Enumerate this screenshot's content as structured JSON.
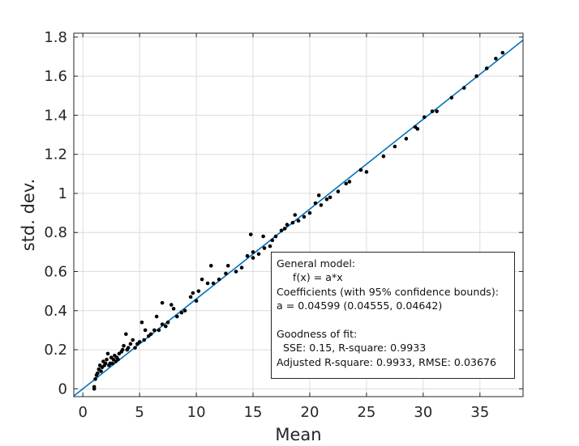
{
  "chart_data": {
    "type": "scatter",
    "xlabel": "Mean",
    "ylabel": "std. dev.",
    "xlim": [
      -0.8,
      38.8
    ],
    "ylim": [
      -0.04,
      1.82
    ],
    "xticks": [
      "0",
      "5",
      "10",
      "15",
      "20",
      "25",
      "30",
      "35"
    ],
    "yticks": [
      "0",
      "0.2",
      "0.4",
      "0.6",
      "0.8",
      "1",
      "1.2",
      "1.4",
      "1.6",
      "1.8"
    ],
    "grid": true,
    "colors": {
      "points": "#000000",
      "fit_line": "#0072bd",
      "grid": "#dcdcdc",
      "axes": "#262626"
    },
    "points": {
      "x": [
        1.0,
        1.0,
        1.1,
        1.2,
        1.3,
        1.4,
        1.5,
        1.6,
        1.7,
        1.8,
        1.9,
        2.0,
        2.1,
        2.2,
        2.3,
        2.4,
        2.5,
        2.6,
        2.7,
        2.8,
        2.9,
        3.0,
        3.1,
        3.2,
        3.4,
        3.5,
        3.6,
        3.8,
        3.9,
        4.0,
        4.2,
        4.4,
        4.6,
        4.8,
        5.0,
        5.2,
        5.4,
        5.5,
        5.8,
        6.0,
        6.3,
        6.5,
        6.7,
        7.0,
        7.0,
        7.3,
        7.5,
        7.8,
        8.0,
        8.3,
        8.7,
        9.0,
        9.5,
        9.7,
        10.0,
        10.2,
        10.5,
        11.0,
        11.3,
        11.5,
        12.0,
        12.6,
        12.8,
        13.5,
        14.0,
        14.5,
        14.8,
        15.0,
        15.0,
        15.5,
        15.9,
        16.0,
        16.5,
        16.7,
        17.0,
        17.5,
        17.8,
        18.0,
        18.5,
        18.7,
        19.0,
        19.5,
        20.0,
        20.5,
        20.8,
        21.0,
        21.5,
        21.8,
        22.5,
        23.2,
        23.5,
        24.5,
        25.0,
        26.5,
        27.5,
        28.5,
        29.3,
        29.5,
        30.1,
        30.8,
        31.2,
        32.5,
        33.6,
        34.7,
        35.6,
        36.4,
        37.0
      ],
      "y": [
        0.0,
        0.01,
        0.05,
        0.07,
        0.08,
        0.1,
        0.12,
        0.09,
        0.11,
        0.14,
        0.12,
        0.13,
        0.15,
        0.18,
        0.12,
        0.13,
        0.16,
        0.13,
        0.15,
        0.17,
        0.14,
        0.16,
        0.15,
        0.18,
        0.19,
        0.2,
        0.22,
        0.28,
        0.2,
        0.21,
        0.23,
        0.25,
        0.21,
        0.23,
        0.24,
        0.34,
        0.25,
        0.3,
        0.27,
        0.28,
        0.3,
        0.37,
        0.3,
        0.33,
        0.44,
        0.32,
        0.34,
        0.43,
        0.41,
        0.37,
        0.39,
        0.4,
        0.47,
        0.49,
        0.45,
        0.5,
        0.56,
        0.54,
        0.63,
        0.54,
        0.56,
        0.59,
        0.63,
        0.6,
        0.62,
        0.68,
        0.79,
        0.67,
        0.7,
        0.69,
        0.78,
        0.72,
        0.73,
        0.76,
        0.78,
        0.81,
        0.82,
        0.84,
        0.85,
        0.89,
        0.86,
        0.88,
        0.9,
        0.95,
        0.99,
        0.94,
        0.97,
        0.98,
        1.01,
        1.05,
        1.06,
        1.12,
        1.11,
        1.19,
        1.24,
        1.28,
        1.34,
        1.33,
        1.39,
        1.42,
        1.42,
        1.49,
        1.54,
        1.6,
        1.64,
        1.69,
        1.72
      ]
    },
    "fit": {
      "a": 0.04599
    }
  },
  "fit_box": {
    "line1": "General model:",
    "line2": "     f(x) = a*x",
    "line3": "Coefficients (with 95% confidence bounds):",
    "line4": "a = 0.04599 (0.04555, 0.04642)",
    "line5": "Goodness of fit:",
    "line6": "  SSE: 0.15, R-square: 0.9933",
    "line7": "Adjusted R-square: 0.9933, RMSE: 0.03676"
  }
}
